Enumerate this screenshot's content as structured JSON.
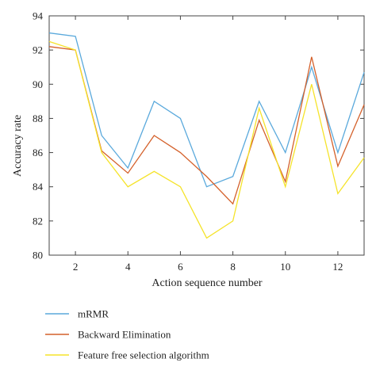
{
  "chart_data": {
    "type": "line",
    "xlabel": "Action sequence number",
    "ylabel": "Accuracy rate",
    "xlim": [
      1,
      13
    ],
    "ylim": [
      80,
      94
    ],
    "xticks": [
      2,
      4,
      6,
      8,
      10,
      12
    ],
    "yticks": [
      80,
      82,
      84,
      86,
      88,
      90,
      92,
      94
    ],
    "x": [
      1,
      2,
      3,
      4,
      5,
      6,
      7,
      8,
      9,
      10,
      11,
      12,
      13
    ],
    "series": [
      {
        "name": "mRMR",
        "color": "#5aa9dc",
        "values": [
          93.0,
          92.8,
          87.0,
          85.1,
          89.0,
          88.0,
          84.0,
          84.6,
          89.0,
          86.0,
          91.0,
          86.0,
          90.7
        ]
      },
      {
        "name": "Backward Elimination",
        "color": "#d4602a",
        "values": [
          92.2,
          92.0,
          86.1,
          84.8,
          87.0,
          86.0,
          84.6,
          83.0,
          87.9,
          84.3,
          91.6,
          85.2,
          88.8
        ]
      },
      {
        "name": "Feature free selection algorithm",
        "color": "#f5e32a",
        "values": [
          92.5,
          92.0,
          86.0,
          84.0,
          84.9,
          84.0,
          81.0,
          82.0,
          88.6,
          84.0,
          90.0,
          83.6,
          85.7
        ]
      }
    ],
    "grid": false,
    "legend_position": "bottom"
  }
}
